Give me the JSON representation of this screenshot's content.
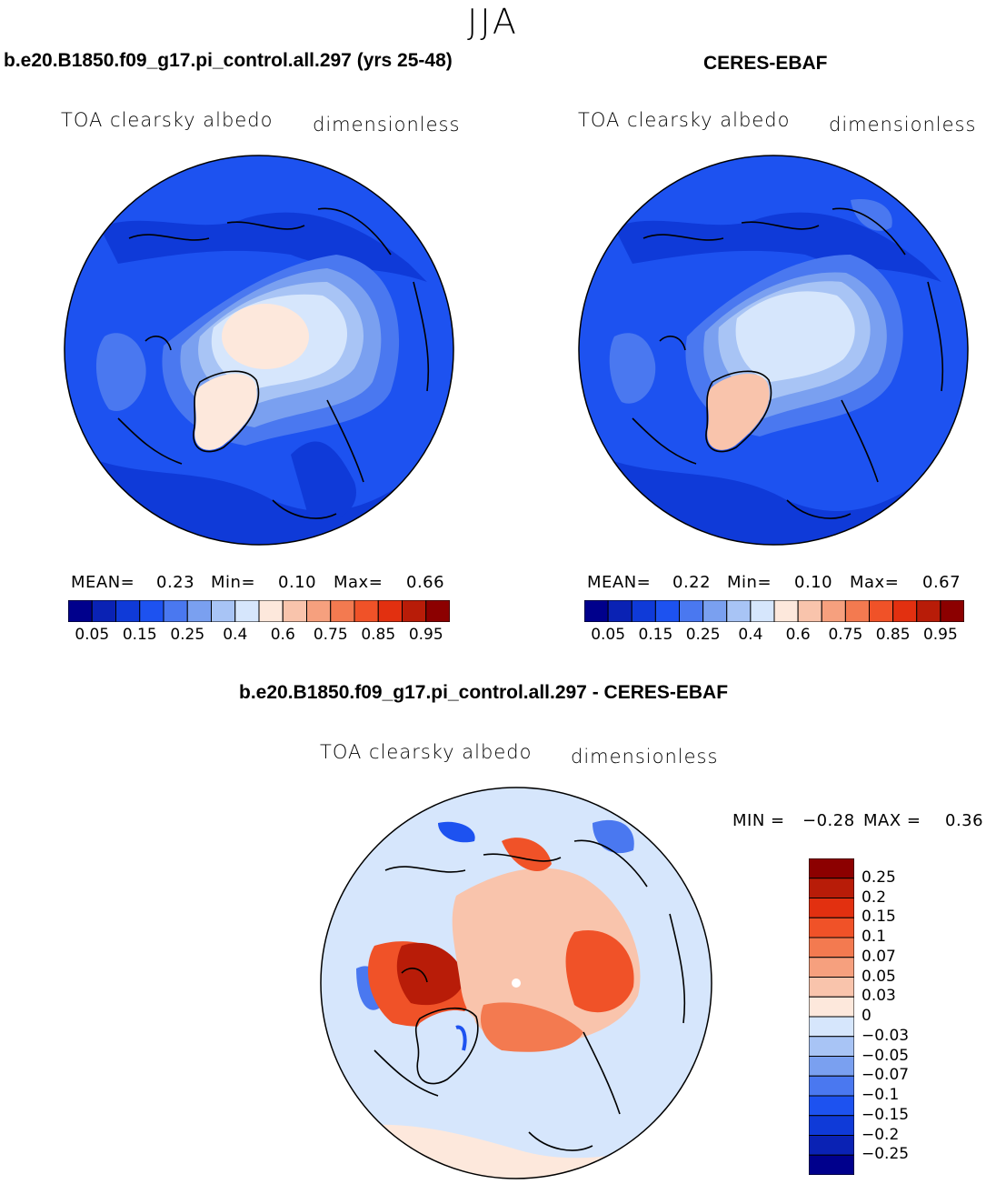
{
  "season": "JJA",
  "panels": [
    {
      "title": "b.e20.B1850.f09_g17.pi_control.all.297 (yrs 25-48)",
      "variable": "TOA clearsky albedo",
      "units": "dimensionless",
      "stats": {
        "mean_label": "MEAN=",
        "mean": "0.23",
        "min_label": "Min=",
        "min": "0.10",
        "max_label": "Max=",
        "max": "0.66"
      }
    },
    {
      "title": "CERES-EBAF",
      "variable": "TOA clearsky albedo",
      "units": "dimensionless",
      "stats": {
        "mean_label": "MEAN=",
        "mean": "0.22",
        "min_label": "Min=",
        "min": "0.10",
        "max_label": "Max=",
        "max": "0.67"
      }
    },
    {
      "title": "b.e20.B1850.f09_g17.pi_control.all.297 - CERES-EBAF",
      "variable": "TOA clearsky albedo",
      "units": "dimensionless",
      "stats": {
        "min_label": "MIN =",
        "min": "−0.28",
        "max_label": "MAX =",
        "max": "0.36"
      }
    }
  ],
  "colorbar_abs": {
    "colors": [
      "#00008c",
      "#0a22b4",
      "#0f3ad8",
      "#1d52f0",
      "#4a78f0",
      "#7aa0f0",
      "#a8c4f5",
      "#d6e6fc",
      "#fde8dc",
      "#f9c4ac",
      "#f6a07e",
      "#f37a50",
      "#f05228",
      "#e23010",
      "#b81c08",
      "#8c0000"
    ],
    "ticks": [
      "0.05",
      "0.15",
      "0.25",
      "0.4",
      "0.6",
      "0.75",
      "0.85",
      "0.95"
    ]
  },
  "colorbar_diff": {
    "colors": [
      "#8c0000",
      "#b81c08",
      "#e23010",
      "#f05228",
      "#f37a50",
      "#f6a07e",
      "#f9c4ac",
      "#fde8dc",
      "#d6e6fc",
      "#a8c4f5",
      "#7aa0f0",
      "#4a78f0",
      "#1d52f0",
      "#0f3ad8",
      "#0a22b4",
      "#00008c"
    ],
    "ticks": [
      "0.25",
      "0.2",
      "0.15",
      "0.1",
      "0.07",
      "0.05",
      "0.03",
      "0",
      "−0.03",
      "−0.05",
      "−0.07",
      "−0.1",
      "−0.15",
      "−0.2",
      "−0.25"
    ]
  }
}
